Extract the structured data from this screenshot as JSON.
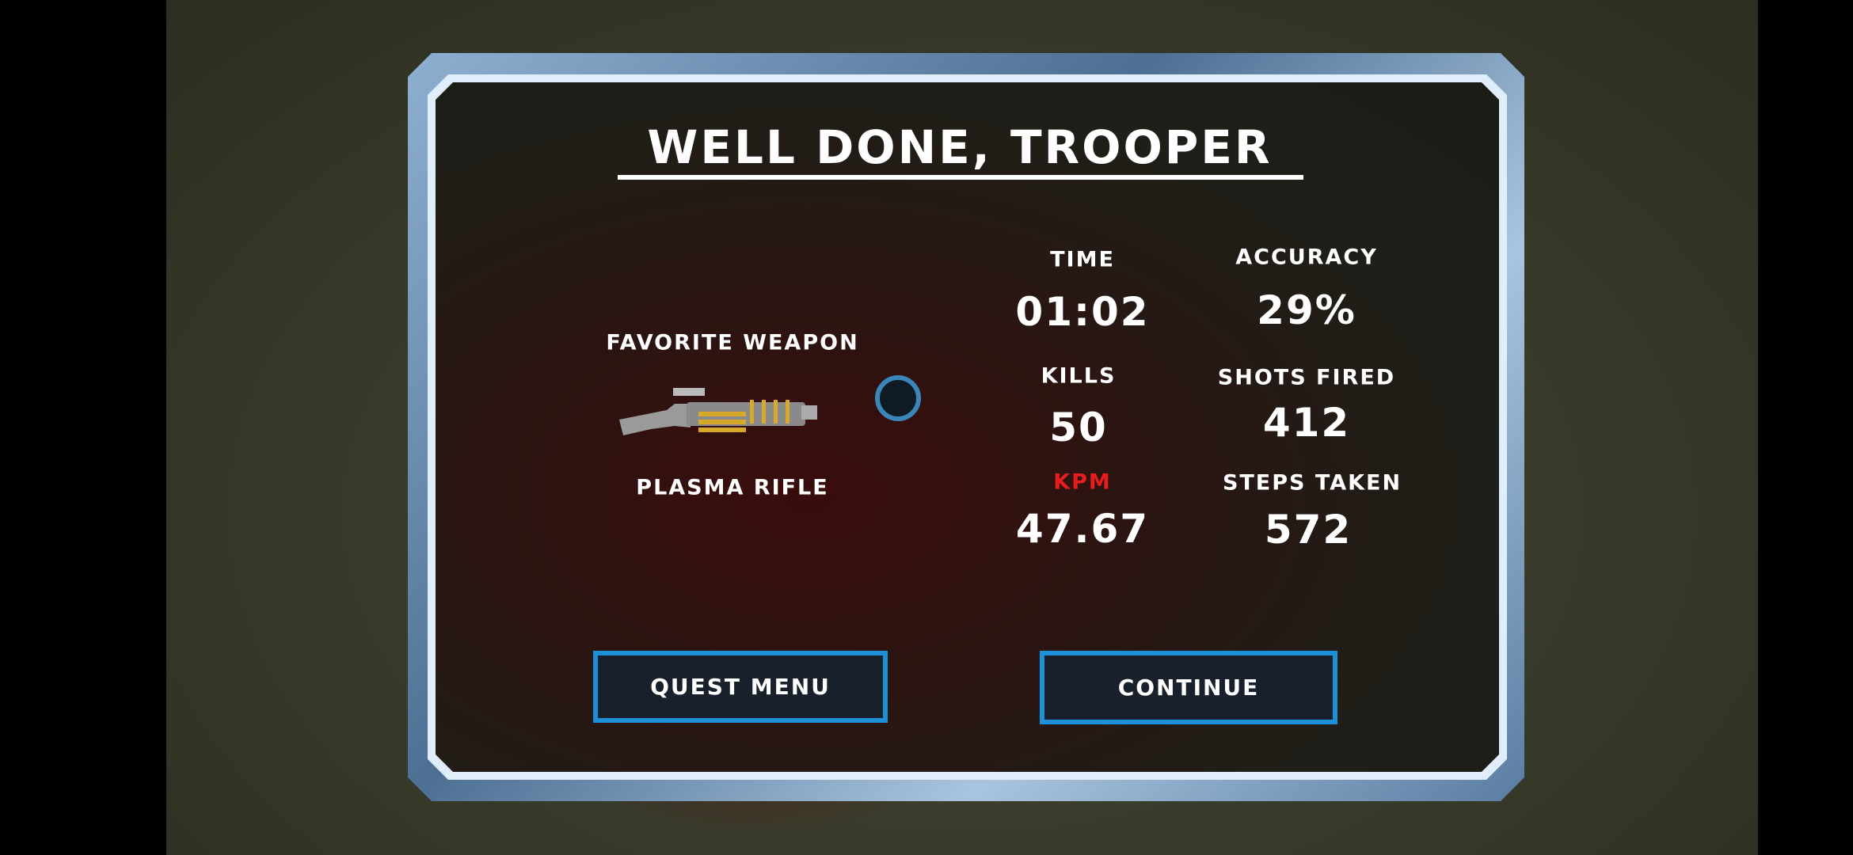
{
  "title": "WELL DONE, TROOPER",
  "favorite_weapon": {
    "label": "FAVORITE WEAPON",
    "name": "PLASMA RIFLE",
    "icon": "plasma-rifle-icon"
  },
  "stats": {
    "time": {
      "label": "TIME",
      "value": "01:02"
    },
    "accuracy": {
      "label": "ACCURACY",
      "value": "29%"
    },
    "kills": {
      "label": "KILLS",
      "value": "50"
    },
    "shots_fired": {
      "label": "SHOTS FIRED",
      "value": "412"
    },
    "kpm": {
      "label": "KPM",
      "value": "47.67"
    },
    "steps_taken": {
      "label": "STEPS TAKEN",
      "value": "572"
    }
  },
  "buttons": {
    "quest_menu": "QUEST MENU",
    "continue": "CONTINUE"
  },
  "colors": {
    "button_border": "#1e90d8",
    "kpm_label": "#e81e1e",
    "frame": "#8fb0d0"
  }
}
